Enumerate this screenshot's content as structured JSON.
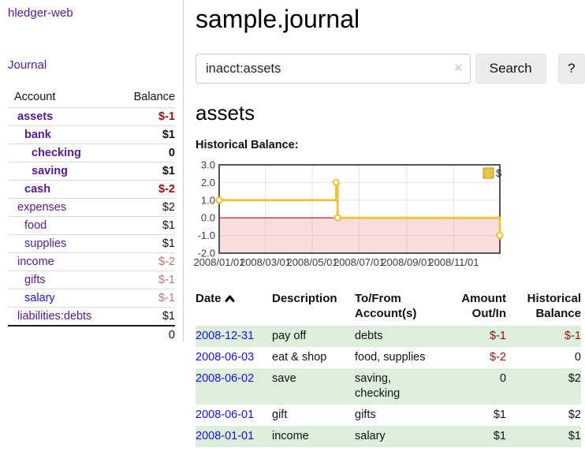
{
  "app": {
    "brand": "hledger-web",
    "nav": {
      "journal": "Journal"
    }
  },
  "colors": {
    "link_purple": "#551a8b",
    "link_blue": "#1414d4",
    "negative": "#8b1515",
    "negative_dim": "#b97878",
    "row_stripe_green": "#ddeedd",
    "chart_line_yellow": "#e9c342",
    "chart_negative_region": "#f9dcdc",
    "chart_zero_line": "#8b1a1a",
    "chart_border": "#545454"
  },
  "sidebar": {
    "header": {
      "account": "Account",
      "balance": "Balance"
    },
    "accounts": [
      {
        "name": "assets",
        "depth": 1,
        "balance": "$-1",
        "bold": true,
        "negative": true,
        "dim": false,
        "blue": false
      },
      {
        "name": "bank",
        "depth": 2,
        "balance": "$1",
        "bold": true,
        "negative": false,
        "dim": false,
        "blue": false
      },
      {
        "name": "checking",
        "depth": 3,
        "balance": "0",
        "bold": true,
        "negative": false,
        "dim": false,
        "blue": false
      },
      {
        "name": "saving",
        "depth": 3,
        "balance": "$1",
        "bold": true,
        "negative": false,
        "dim": false,
        "blue": false
      },
      {
        "name": "cash",
        "depth": 2,
        "balance": "$-2",
        "bold": true,
        "negative": true,
        "dim": false,
        "blue": false
      },
      {
        "name": "expenses",
        "depth": 1,
        "balance": "$2",
        "bold": false,
        "negative": false,
        "dim": false,
        "blue": false
      },
      {
        "name": "food",
        "depth": 2,
        "balance": "$1",
        "bold": false,
        "negative": false,
        "dim": false,
        "blue": false
      },
      {
        "name": "supplies",
        "depth": 2,
        "balance": "$1",
        "bold": false,
        "negative": false,
        "dim": false,
        "blue": false
      },
      {
        "name": "income",
        "depth": 1,
        "balance": "$-2",
        "bold": false,
        "negative": true,
        "dim": true,
        "blue": false
      },
      {
        "name": "gifts",
        "depth": 2,
        "balance": "$-1",
        "bold": false,
        "negative": true,
        "dim": true,
        "blue": false
      },
      {
        "name": "salary",
        "depth": 2,
        "balance": "$-1",
        "bold": false,
        "negative": true,
        "dim": true,
        "blue": true
      },
      {
        "name": "liabilities:debts",
        "depth": 1,
        "balance": "$1",
        "bold": false,
        "negative": false,
        "dim": false,
        "blue": false
      }
    ],
    "total": "0"
  },
  "header": {
    "title": "sample.journal"
  },
  "search": {
    "value": "inacct:assets",
    "clear_icon": "✕",
    "button_label": "Search",
    "help_label": "?"
  },
  "account_page": {
    "title": "assets",
    "chart_heading": "Historical Balance:"
  },
  "chart_data": {
    "type": "line",
    "title": "Historical Balance",
    "step": true,
    "legend": {
      "label": "$",
      "position": "top-right"
    },
    "x_domain": [
      "2008-01-01",
      "2008-12-31"
    ],
    "ylim": [
      -2,
      3
    ],
    "grid": true,
    "negative_region_shaded": true,
    "points": [
      {
        "x": "2008-01-01",
        "y": 1
      },
      {
        "x": "2008-06-01",
        "y": 2
      },
      {
        "x": "2008-06-03",
        "y": 0
      },
      {
        "x": "2008-12-31",
        "y": -1
      }
    ],
    "x_ticks": [
      {
        "x": "2008-01-01",
        "label": "2008/01/01"
      },
      {
        "x": "2008-03-01",
        "label": "2008/03/01"
      },
      {
        "x": "2008-05-01",
        "label": "2008/05/01"
      },
      {
        "x": "2008-07-01",
        "label": "2008/07/01"
      },
      {
        "x": "2008-09-01",
        "label": "2008/09/01"
      },
      {
        "x": "2008-11-01",
        "label": "2008/11/01"
      }
    ],
    "y_ticks": [
      {
        "v": 3,
        "label": "3.0"
      },
      {
        "v": 2,
        "label": "2.0"
      },
      {
        "v": 1,
        "label": "1.0"
      },
      {
        "v": 0,
        "label": "0.0"
      },
      {
        "v": -1,
        "label": "-1.0"
      },
      {
        "v": -2,
        "label": "-2.0"
      }
    ]
  },
  "register": {
    "columns": [
      {
        "label": "Date",
        "sorted": "ascending"
      },
      {
        "label": "Description"
      },
      {
        "label": "To/From Account(s)"
      },
      {
        "label": "Amount Out/In"
      },
      {
        "label": "Historical Balance"
      }
    ],
    "rows": [
      {
        "date": "2008-12-31",
        "description": "pay off",
        "accounts": "debts",
        "accounts_lines": [
          "debts"
        ],
        "amount": "$-1",
        "amount_negative": true,
        "balance": "$-1",
        "balance_negative": true
      },
      {
        "date": "2008-06-03",
        "description": "eat & shop",
        "accounts": "food, supplies",
        "accounts_lines": [
          "food, supplies"
        ],
        "amount": "$-2",
        "amount_negative": true,
        "balance": "0",
        "balance_negative": false
      },
      {
        "date": "2008-06-02",
        "description": "save",
        "accounts": "saving, checking",
        "accounts_lines": [
          "saving,",
          "checking"
        ],
        "amount": "0",
        "amount_negative": false,
        "balance": "$2",
        "balance_negative": false
      },
      {
        "date": "2008-06-01",
        "description": "gift",
        "accounts": "gifts",
        "accounts_lines": [
          "gifts"
        ],
        "amount": "$1",
        "amount_negative": false,
        "balance": "$2",
        "balance_negative": false
      },
      {
        "date": "2008-01-01",
        "description": "income",
        "accounts": "salary",
        "accounts_lines": [
          "salary"
        ],
        "amount": "$1",
        "amount_negative": false,
        "balance": "$1",
        "balance_negative": false
      }
    ]
  }
}
